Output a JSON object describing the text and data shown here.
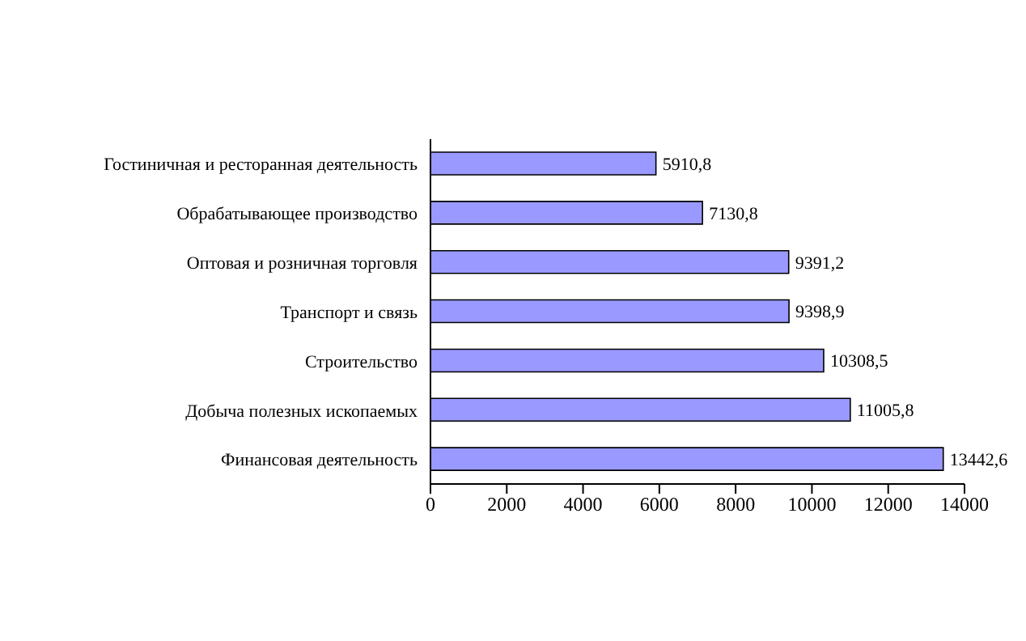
{
  "chart_data": {
    "type": "bar",
    "orientation": "horizontal",
    "categories": [
      "Гостиничная и ресторанная деятельность",
      "Обрабатывающее производство",
      "Оптовая и розничная торговля",
      "Транспорт и связь",
      "Строительство",
      "Добыча полезных ископаемых",
      "Финансовая деятельность"
    ],
    "values": [
      5910.8,
      7130.8,
      9391.2,
      9398.9,
      10308.5,
      11005.8,
      13442.6
    ],
    "value_labels": [
      "5910,8",
      "7130,8",
      "9391,2",
      "9398,9",
      "10308,5",
      "11005,8",
      "13442,6"
    ],
    "color": "#9999ff",
    "xlim": [
      0,
      14000
    ],
    "xticks": [
      0,
      2000,
      4000,
      6000,
      8000,
      10000,
      12000,
      14000
    ],
    "grid": false,
    "legend": false
  }
}
